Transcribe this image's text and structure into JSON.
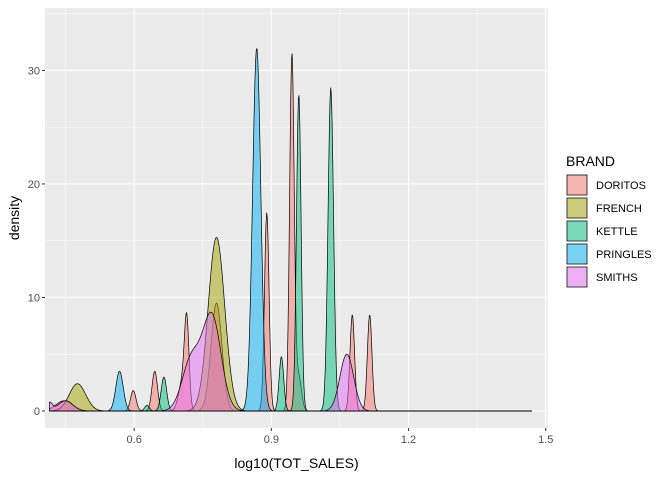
{
  "chart_data": {
    "type": "area",
    "xlabel": "log10(TOT_SALES)",
    "ylabel": "density",
    "xlim": [
      0.405,
      1.505
    ],
    "ylim": [
      -1.5,
      35.5
    ],
    "x_ticks": [
      0.6,
      0.9,
      1.2,
      1.5
    ],
    "x_tick_labels": [
      "0.6",
      "0.9",
      "1.2",
      "1.5"
    ],
    "y_ticks": [
      0,
      10,
      20,
      30
    ],
    "y_tick_labels": [
      "0",
      "10",
      "20",
      "30"
    ],
    "grid": true,
    "panel_background": "#ebebeb",
    "legend": {
      "title": "BRAND",
      "position": "right"
    },
    "series": [
      {
        "name": "DORITOS",
        "color": "#f8766d",
        "peaks": [
          [
            0.447,
            0.9,
            0.018
          ],
          [
            0.598,
            1.8,
            0.006
          ],
          [
            0.645,
            3.5,
            0.006
          ],
          [
            0.705,
            2.5,
            0.008
          ],
          [
            0.715,
            7.5,
            0.005
          ],
          [
            0.78,
            9.5,
            0.012
          ],
          [
            0.89,
            17.5,
            0.005
          ],
          [
            0.945,
            31.5,
            0.005
          ],
          [
            0.96,
            3.0,
            0.006
          ],
          [
            1.077,
            8.5,
            0.005
          ],
          [
            1.115,
            8.5,
            0.005
          ]
        ]
      },
      {
        "name": "FRENCH",
        "color": "#a3a500",
        "peaks": [
          [
            0.476,
            2.4,
            0.018
          ],
          [
            0.78,
            15.3,
            0.018
          ]
        ]
      },
      {
        "name": "KETTLE",
        "color": "#00bf7d",
        "peaks": [
          [
            0.628,
            0.5,
            0.005
          ],
          [
            0.665,
            3.0,
            0.006
          ],
          [
            0.922,
            4.8,
            0.005
          ],
          [
            0.96,
            28.0,
            0.005
          ],
          [
            1.03,
            28.5,
            0.006
          ]
        ]
      },
      {
        "name": "PRINGLES",
        "color": "#00b0f6",
        "peaks": [
          [
            0.568,
            3.5,
            0.008
          ],
          [
            0.868,
            32.0,
            0.009
          ]
        ]
      },
      {
        "name": "SMITHS",
        "color": "#e76bf3",
        "peaks": [
          [
            0.415,
            0.7,
            0.006
          ],
          [
            0.45,
            0.9,
            0.016
          ],
          [
            0.725,
            4.5,
            0.02
          ],
          [
            0.77,
            8.3,
            0.02
          ],
          [
            1.065,
            5.0,
            0.015
          ]
        ]
      }
    ]
  }
}
